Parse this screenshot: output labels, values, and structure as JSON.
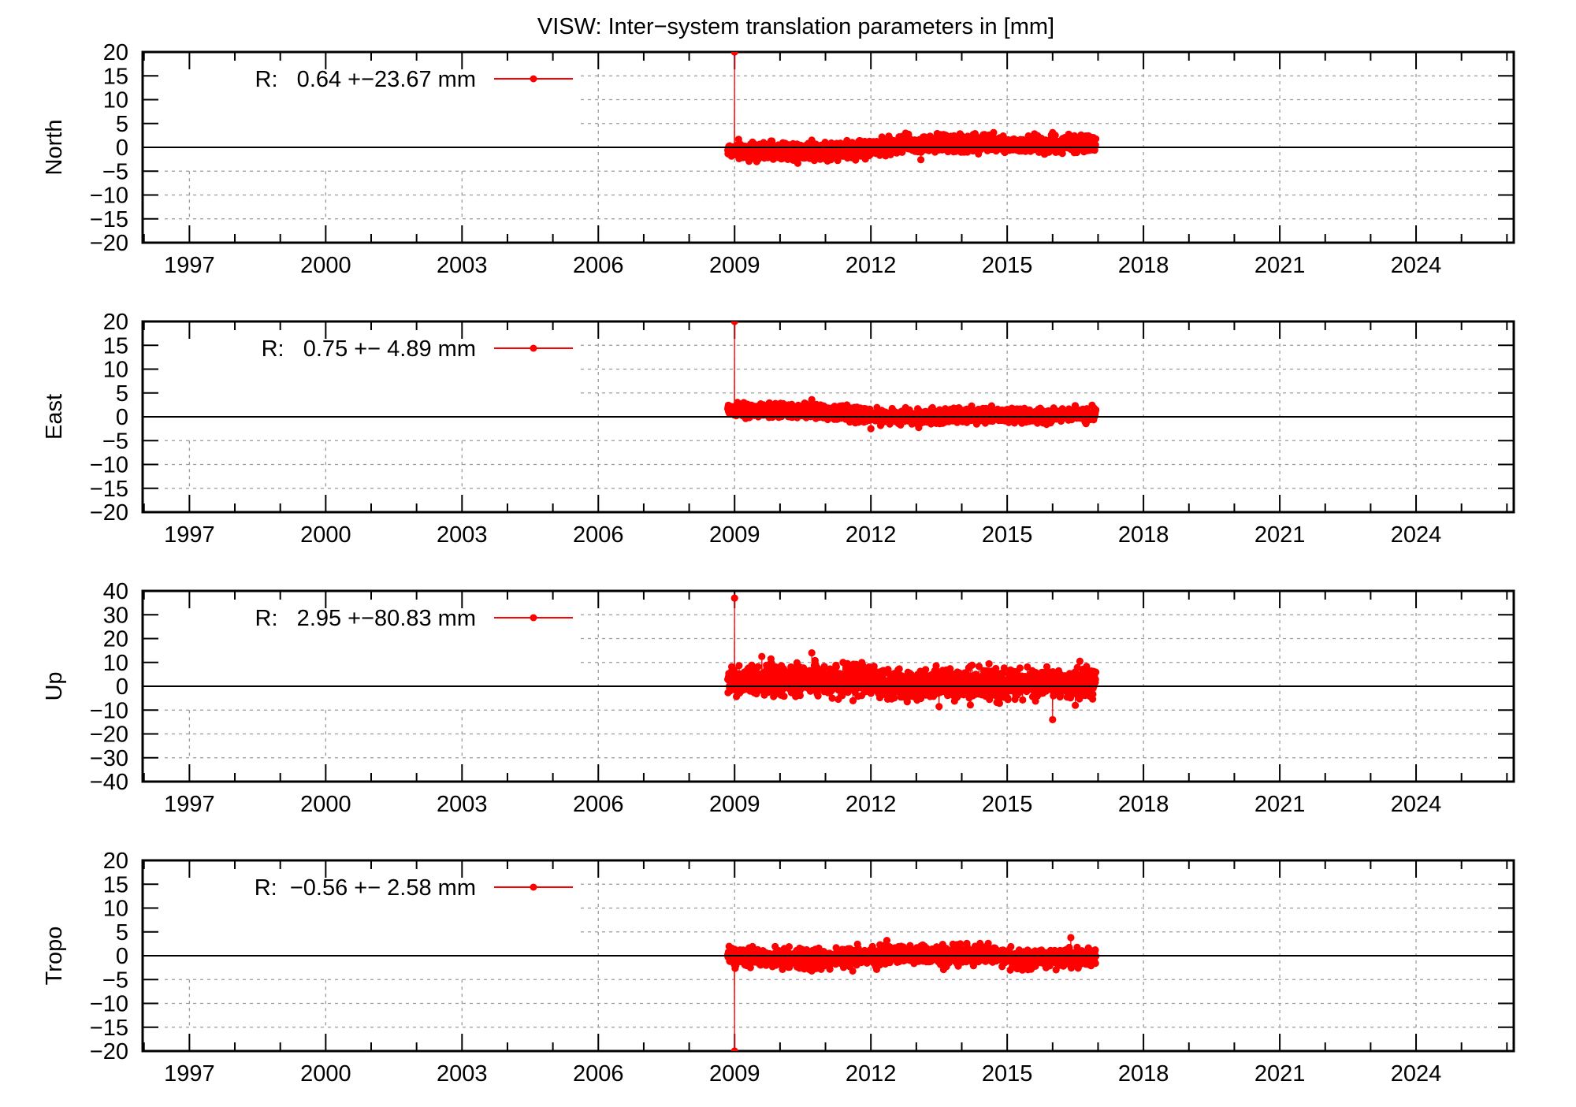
{
  "chart_data": {
    "type": "line",
    "title": "VISW: Inter−system translation parameters in [mm]",
    "x_range": [
      1995.97,
      2026.15
    ],
    "x_ticks": [
      1997,
      2000,
      2003,
      2006,
      2009,
      2012,
      2015,
      2018,
      2021,
      2024
    ],
    "x_minor_step": 1,
    "grid": true,
    "series_color": "#ff0000",
    "panels": [
      {
        "name": "North",
        "ylabel": "North",
        "ylim": [
          -20,
          20
        ],
        "y_ticks": [
          20,
          15,
          10,
          5,
          0,
          -5,
          -10,
          -15,
          -20
        ],
        "legend": "R:   0.64 +−23.67 mm",
        "legend_parts": {
          "prefix": "R:",
          "mean": "0.64",
          "sigma": "+−23.67",
          "unit": "mm"
        },
        "data_start": 2008.85,
        "data_end": 2016.95,
        "spike": {
          "x": 2009.0,
          "y": 20,
          "clipped": true
        },
        "trend": [
          [
            2008.85,
            -0.6
          ],
          [
            2010.5,
            -0.9
          ],
          [
            2011.9,
            -0.4
          ],
          [
            2012.5,
            0.5
          ],
          [
            2013.5,
            0.6
          ],
          [
            2014.6,
            1.0
          ],
          [
            2015.0,
            0.5
          ],
          [
            2016.95,
            0.9
          ]
        ],
        "noise": 0.9,
        "outliers": [
          [
            2013.1,
            -2.6
          ],
          [
            2013.6,
            2.7
          ],
          [
            2014.7,
            3.1
          ],
          [
            2016.0,
            3.1
          ],
          [
            2010.7,
            1.5
          ]
        ]
      },
      {
        "name": "East",
        "ylabel": "East",
        "ylim": [
          -20,
          20
        ],
        "y_ticks": [
          20,
          15,
          10,
          5,
          0,
          -5,
          -10,
          -15,
          -20
        ],
        "legend": "R:   0.75 +− 4.89 mm",
        "legend_parts": {
          "prefix": "R:",
          "mean": "0.75",
          "sigma": "+− 4.89",
          "unit": "mm"
        },
        "data_start": 2008.85,
        "data_end": 2016.95,
        "spike": {
          "x": 2009.0,
          "y": 20,
          "clipped": true
        },
        "trend": [
          [
            2008.85,
            1.5
          ],
          [
            2010.5,
            1.2
          ],
          [
            2011.5,
            0.7
          ],
          [
            2012.0,
            0.2
          ],
          [
            2013.0,
            -0.1
          ],
          [
            2014.0,
            0.4
          ],
          [
            2015.0,
            0.2
          ],
          [
            2016.95,
            0.5
          ]
        ],
        "noise": 0.75,
        "outliers": [
          [
            2012.0,
            -2.5
          ],
          [
            2010.7,
            3.6
          ],
          [
            2009.9,
            2.8
          ]
        ]
      },
      {
        "name": "Up",
        "ylabel": "Up",
        "ylim": [
          -40,
          40
        ],
        "y_ticks": [
          40,
          30,
          20,
          10,
          0,
          -10,
          -20,
          -30,
          -40
        ],
        "legend": "R:   2.95 +−80.83 mm",
        "legend_parts": {
          "prefix": "R:",
          "mean": "2.95",
          "sigma": "+−80.83",
          "unit": "mm"
        },
        "data_start": 2008.85,
        "data_end": 2016.95,
        "spike": {
          "x": 2009.0,
          "y": 37,
          "clipped": false
        },
        "trend": [
          [
            2008.85,
            1.5
          ],
          [
            2010.0,
            3.0
          ],
          [
            2011.5,
            3.2
          ],
          [
            2012.5,
            1.0
          ],
          [
            2014.0,
            0.5
          ],
          [
            2015.5,
            1.0
          ],
          [
            2016.95,
            0.8
          ]
        ],
        "noise": 3.2,
        "outliers": [
          [
            2010.7,
            14.0
          ],
          [
            2009.6,
            12.5
          ],
          [
            2009.8,
            11.5
          ],
          [
            2011.8,
            10.0
          ],
          [
            2016.0,
            -14.0
          ],
          [
            2016.6,
            10.5
          ],
          [
            2013.5,
            -8.5
          ],
          [
            2016.5,
            -8.0
          ],
          [
            2012.8,
            -6.5
          ]
        ]
      },
      {
        "name": "Tropo",
        "ylabel": "Tropo",
        "ylim": [
          -20,
          20
        ],
        "y_ticks": [
          20,
          15,
          10,
          5,
          0,
          -5,
          -10,
          -15,
          -20
        ],
        "legend": "R:  −0.56 +− 2.58 mm",
        "legend_parts": {
          "prefix": "R:",
          "mean": "−0.56",
          "sigma": "+− 2.58",
          "unit": "mm"
        },
        "data_start": 2008.85,
        "data_end": 2016.95,
        "spike": {
          "x": 2009.0,
          "y": -20,
          "clipped": true
        },
        "trend": [
          [
            2008.85,
            -0.4
          ],
          [
            2010.5,
            -0.5
          ],
          [
            2011.5,
            -0.6
          ],
          [
            2012.5,
            0.3
          ],
          [
            2013.5,
            0.0
          ],
          [
            2014.6,
            0.6
          ],
          [
            2015.2,
            -0.8
          ],
          [
            2016.95,
            -0.3
          ]
        ],
        "noise": 0.95,
        "outliers": [
          [
            2016.4,
            3.8
          ],
          [
            2010.7,
            -3.2
          ],
          [
            2011.6,
            -3.2
          ],
          [
            2013.6,
            -2.9
          ],
          [
            2012.2,
            2.3
          ]
        ]
      }
    ]
  }
}
